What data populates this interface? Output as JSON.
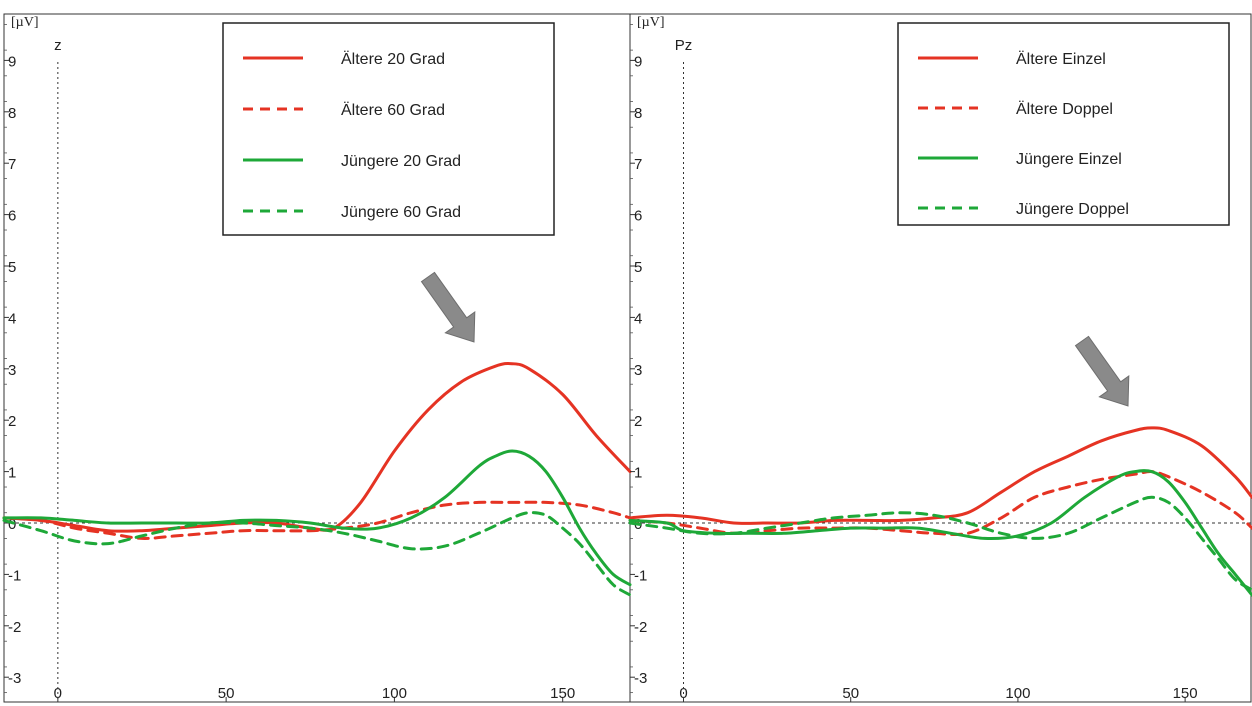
{
  "chart_data": [
    {
      "type": "line",
      "channel_label": "z",
      "y_unit_label": "[µV]",
      "xlim": [
        -16,
        170
      ],
      "ylim": [
        -3.3,
        10
      ],
      "x_ticks": [
        0,
        50,
        100,
        150
      ],
      "y_ticks": [
        -3,
        -2,
        -1,
        0,
        1,
        2,
        3,
        4,
        5,
        6,
        7,
        8,
        9
      ],
      "legend_position": "top-right",
      "annotation": "gray-arrow pointing at peak near 135",
      "series": [
        {
          "name": "Ältere 20 Grad",
          "color": "#e53323",
          "dash": "solid",
          "x": [
            -16,
            -5,
            5,
            15,
            25,
            35,
            45,
            55,
            65,
            75,
            82,
            90,
            100,
            110,
            120,
            130,
            135,
            140,
            150,
            160,
            170
          ],
          "y": [
            0.1,
            0.05,
            -0.05,
            -0.15,
            -0.15,
            -0.1,
            -0.05,
            0.0,
            0.0,
            -0.1,
            -0.1,
            0.4,
            1.4,
            2.2,
            2.75,
            3.05,
            3.1,
            3.0,
            2.5,
            1.7,
            1.0
          ]
        },
        {
          "name": "Ältere 60 Grad",
          "color": "#e53323",
          "dash": "dashed",
          "x": [
            -16,
            -5,
            5,
            15,
            25,
            35,
            45,
            55,
            65,
            75,
            85,
            95,
            105,
            115,
            125,
            135,
            145,
            155,
            165,
            170
          ],
          "y": [
            0.1,
            0.05,
            -0.1,
            -0.2,
            -0.3,
            -0.25,
            -0.2,
            -0.15,
            -0.15,
            -0.15,
            -0.1,
            0.0,
            0.2,
            0.35,
            0.4,
            0.4,
            0.4,
            0.35,
            0.2,
            0.1
          ]
        },
        {
          "name": "Jüngere 20 Grad",
          "color": "#1ea838",
          "dash": "solid",
          "x": [
            -16,
            -5,
            5,
            15,
            25,
            35,
            45,
            55,
            65,
            75,
            85,
            95,
            105,
            115,
            125,
            130,
            135,
            140,
            145,
            150,
            155,
            160,
            165,
            170
          ],
          "y": [
            0.1,
            0.1,
            0.05,
            0.0,
            0.0,
            0.0,
            0.0,
            0.05,
            0.05,
            0.0,
            -0.1,
            -0.1,
            0.1,
            0.5,
            1.1,
            1.3,
            1.4,
            1.3,
            1.0,
            0.5,
            -0.1,
            -0.6,
            -1.0,
            -1.2
          ]
        },
        {
          "name": "Jüngere 60 Grad",
          "color": "#1ea838",
          "dash": "dashed",
          "x": [
            -16,
            -5,
            5,
            15,
            25,
            35,
            45,
            55,
            65,
            75,
            85,
            95,
            105,
            115,
            125,
            135,
            140,
            145,
            150,
            155,
            160,
            165,
            170
          ],
          "y": [
            0.05,
            -0.15,
            -0.35,
            -0.4,
            -0.25,
            -0.1,
            0.0,
            0.0,
            -0.05,
            -0.1,
            -0.2,
            -0.35,
            -0.5,
            -0.45,
            -0.2,
            0.1,
            0.2,
            0.15,
            -0.1,
            -0.4,
            -0.8,
            -1.2,
            -1.4
          ]
        }
      ]
    },
    {
      "type": "line",
      "channel_label": "Pz",
      "y_unit_label": "[µV]",
      "xlim": [
        -16,
        170
      ],
      "ylim": [
        -3.3,
        10
      ],
      "x_ticks": [
        0,
        50,
        100,
        150
      ],
      "y_ticks": [
        -3,
        -2,
        -1,
        0,
        1,
        2,
        3,
        4,
        5,
        6,
        7,
        8,
        9
      ],
      "legend_position": "top-right",
      "annotation": "gray-arrow pointing at peak near 140",
      "series": [
        {
          "name": "Ältere Einzel",
          "color": "#e53323",
          "dash": "solid",
          "x": [
            -16,
            -5,
            5,
            15,
            25,
            35,
            45,
            55,
            65,
            75,
            85,
            95,
            105,
            115,
            125,
            135,
            140,
            145,
            155,
            165,
            170
          ],
          "y": [
            0.1,
            0.15,
            0.1,
            0.0,
            0.0,
            0.0,
            0.05,
            0.05,
            0.05,
            0.1,
            0.2,
            0.6,
            1.0,
            1.3,
            1.6,
            1.8,
            1.85,
            1.8,
            1.5,
            0.9,
            0.5
          ]
        },
        {
          "name": "Ältere Doppel",
          "color": "#e53323",
          "dash": "dashed",
          "x": [
            -16,
            -5,
            5,
            15,
            25,
            35,
            45,
            55,
            65,
            75,
            85,
            95,
            105,
            115,
            125,
            135,
            140,
            145,
            155,
            165,
            170
          ],
          "y": [
            0.05,
            0.0,
            -0.1,
            -0.2,
            -0.15,
            -0.1,
            -0.1,
            -0.1,
            -0.15,
            -0.2,
            -0.2,
            0.1,
            0.5,
            0.7,
            0.85,
            0.95,
            1.0,
            0.9,
            0.6,
            0.2,
            -0.1
          ]
        },
        {
          "name": "Jüngere Einzel",
          "color": "#1ea838",
          "dash": "solid",
          "x": [
            -16,
            -5,
            0,
            10,
            20,
            30,
            40,
            50,
            60,
            70,
            80,
            90,
            100,
            110,
            120,
            130,
            135,
            140,
            145,
            150,
            155,
            160,
            165,
            170
          ],
          "y": [
            0.05,
            0.0,
            -0.15,
            -0.2,
            -0.2,
            -0.2,
            -0.15,
            -0.1,
            -0.1,
            -0.1,
            -0.2,
            -0.3,
            -0.25,
            0.0,
            0.5,
            0.9,
            1.0,
            1.0,
            0.8,
            0.4,
            -0.1,
            -0.6,
            -1.0,
            -1.4
          ]
        },
        {
          "name": "Jüngere Doppel",
          "color": "#1ea838",
          "dash": "dashed",
          "x": [
            -16,
            -5,
            5,
            15,
            25,
            35,
            45,
            55,
            65,
            75,
            85,
            95,
            105,
            115,
            125,
            135,
            140,
            145,
            150,
            155,
            160,
            165,
            170
          ],
          "y": [
            0.0,
            -0.1,
            -0.2,
            -0.2,
            -0.1,
            0.0,
            0.1,
            0.15,
            0.2,
            0.15,
            0.0,
            -0.2,
            -0.3,
            -0.2,
            0.1,
            0.4,
            0.5,
            0.4,
            0.1,
            -0.3,
            -0.7,
            -1.1,
            -1.3
          ]
        }
      ]
    }
  ]
}
